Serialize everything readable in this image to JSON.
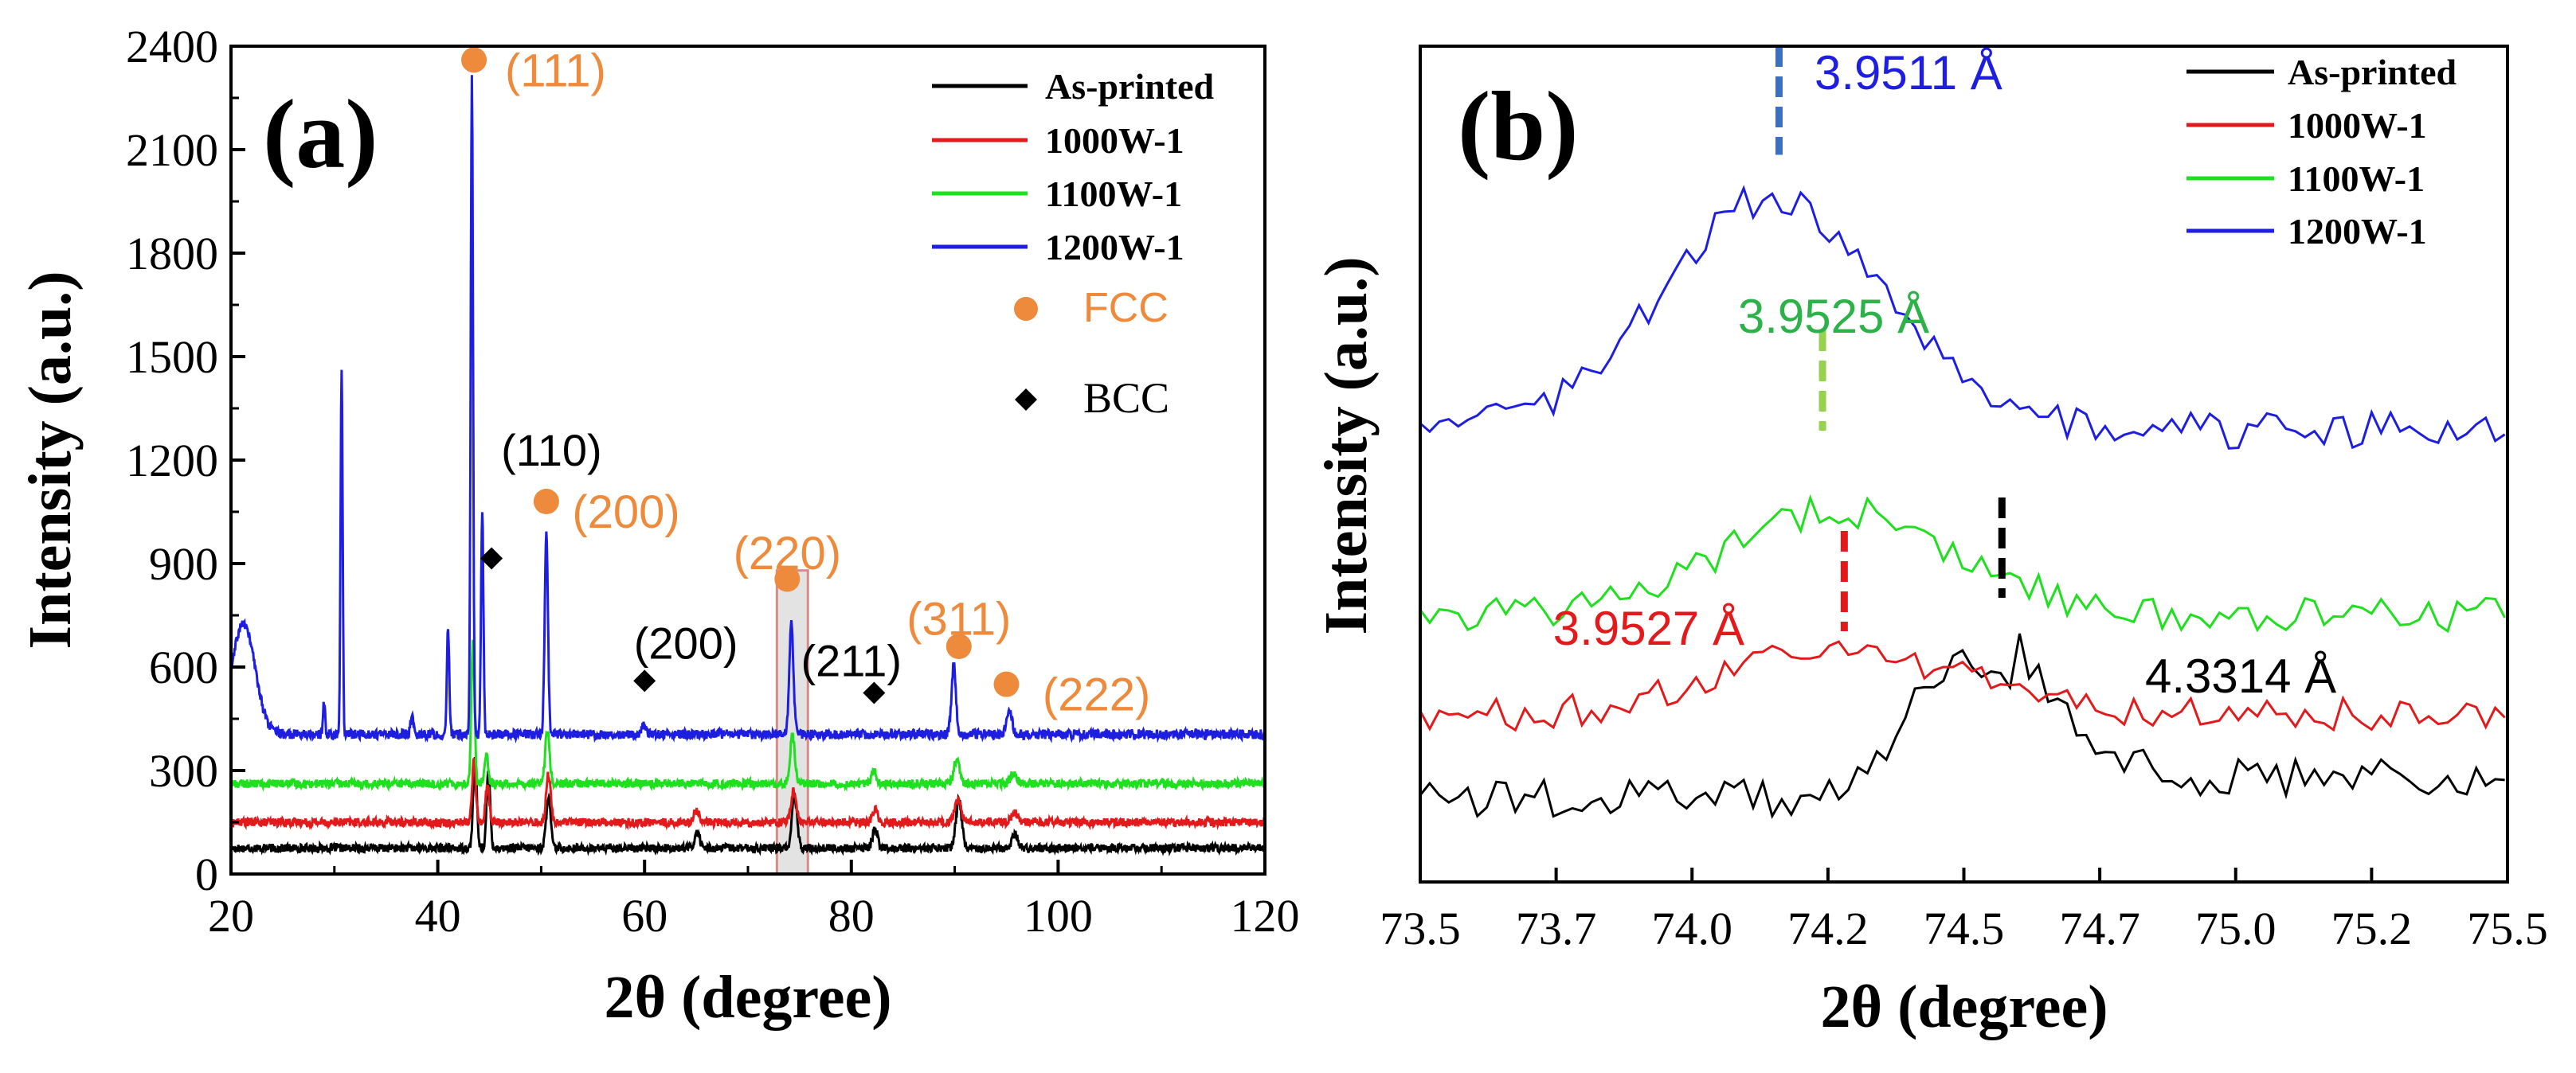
{
  "chart_data": [
    {
      "type": "line",
      "panel_label": "(a)",
      "xlabel": "2θ (degree)",
      "ylabel": "Intensity (a.u.)",
      "xlim": [
        20,
        120
      ],
      "ylim": [
        0,
        2400
      ],
      "xticks": [
        20,
        40,
        60,
        80,
        100,
        120
      ],
      "yticks": [
        0,
        300,
        600,
        900,
        1200,
        1500,
        1800,
        2100,
        2400
      ],
      "series": [
        {
          "name": "As-printed",
          "color": "#000000",
          "baseline": 75,
          "noise": 12,
          "peaks": [
            [
              43.6,
              260,
              0.25
            ],
            [
              44.9,
              220,
              0.25
            ],
            [
              50.7,
              150,
              0.3
            ],
            [
              65.1,
              45,
              0.35
            ],
            [
              74.5,
              150,
              0.35
            ],
            [
              82.3,
              55,
              0.35
            ],
            [
              90.4,
              140,
              0.4
            ],
            [
              95.8,
              40,
              0.4
            ]
          ]
        },
        {
          "name": "1000W-1",
          "color": "#e31a1c",
          "baseline": 150,
          "noise": 12,
          "peaks": [
            [
              43.5,
              180,
              0.25
            ],
            [
              44.8,
              110,
              0.25
            ],
            [
              50.7,
              140,
              0.3
            ],
            [
              65.0,
              35,
              0.35
            ],
            [
              74.4,
              90,
              0.35
            ],
            [
              82.3,
              40,
              0.35
            ],
            [
              90.3,
              70,
              0.4
            ],
            [
              95.8,
              30,
              0.4
            ]
          ]
        },
        {
          "name": "1100W-1",
          "color": "#1ee01e",
          "baseline": 262,
          "noise": 12,
          "peaks": [
            [
              43.4,
              420,
              0.22
            ],
            [
              44.7,
              90,
              0.25
            ],
            [
              50.6,
              150,
              0.3
            ],
            [
              74.3,
              140,
              0.32
            ],
            [
              82.2,
              40,
              0.35
            ],
            [
              90.2,
              70,
              0.4
            ],
            [
              95.7,
              30,
              0.4
            ]
          ]
        },
        {
          "name": "1200W-1",
          "color": "#1e1ee0",
          "baseline": 405,
          "noise": 14,
          "peaks": [
            [
              21.2,
              320,
              1.6
            ],
            [
              29.0,
              90,
              0.15
            ],
            [
              30.7,
              1070,
              0.14
            ],
            [
              37.5,
              50,
              0.2
            ],
            [
              41.0,
              310,
              0.16
            ],
            [
              43.3,
              1900,
              0.16
            ],
            [
              44.3,
              650,
              0.16
            ],
            [
              50.5,
              590,
              0.22
            ],
            [
              59.9,
              25,
              0.3
            ],
            [
              74.2,
              320,
              0.28
            ],
            [
              89.9,
              200,
              0.3
            ],
            [
              95.3,
              70,
              0.35
            ]
          ]
        }
      ],
      "legend": [
        "As-printed",
        "1000W-1",
        "1100W-1",
        "1200W-1"
      ],
      "phase_legend": {
        "fcc": "FCC",
        "bcc": "BCC"
      },
      "annotations": {
        "fcc": [
          {
            "label": "(111)",
            "x": 43.5,
            "y": 2360,
            "text_x": 46.5,
            "text_y": 2330
          },
          {
            "label": "(200)",
            "x": 50.5,
            "y": 1080,
            "text_x": 53.0,
            "text_y": 1050
          },
          {
            "label": "(220)",
            "x": 73.8,
            "y": 855,
            "text_x": 73.8,
            "text_y": 930
          },
          {
            "label": "(311)",
            "x": 90.4,
            "y": 660,
            "text_x": 90.4,
            "text_y": 740
          },
          {
            "label": "(222)",
            "x": 95.0,
            "y": 550,
            "text_x": 98.5,
            "text_y": 520
          }
        ],
        "bcc": [
          {
            "label": "(110)",
            "x": 45.2,
            "y": 915,
            "text_x": 51.0,
            "text_y": 1230
          },
          {
            "label": "(200)",
            "x": 60.0,
            "y": 560,
            "text_x": 64.0,
            "text_y": 670
          },
          {
            "label": "(211)",
            "x": 82.2,
            "y": 525,
            "text_x": 80.0,
            "text_y": 620
          }
        ]
      },
      "highlight_region": [
        72.8,
        75.8
      ]
    },
    {
      "type": "line",
      "panel_label": "(b)",
      "xlabel": "2θ (degree)",
      "ylabel": "Intensity (a.u.)",
      "xlim": [
        73.5,
        75.5
      ],
      "ylim": [
        0,
        100
      ],
      "xticks": [
        "73.5",
        "73.7",
        "74.0",
        "74.2",
        "74.5",
        "74.7",
        "75.0",
        "75.2",
        "75.5"
      ],
      "series": [
        {
          "name": "As-printed",
          "color": "#000000",
          "baseline": 10,
          "noise": 2.2,
          "peaks": [
            [
              74.5,
              14,
              0.14
            ]
          ],
          "step": [
            74.27,
            74.42,
            2.5
          ],
          "tail": [
            74.6,
            74.92,
            7
          ]
        },
        {
          "name": "1000W-1",
          "color": "#e31a1c",
          "baseline": 20,
          "noise": 2.0,
          "peaks": [
            [
              74.27,
              8,
              0.3
            ]
          ]
        },
        {
          "name": "1100W-1",
          "color": "#1ee01e",
          "baseline": 32,
          "noise": 2.0,
          "peaks": [
            [
              74.27,
              12.5,
              0.3
            ]
          ]
        },
        {
          "name": "1200W-1",
          "color": "#1e1ee0",
          "baseline": 54,
          "noise": 2.2,
          "peaks": [
            [
              74.15,
              28,
              0.29
            ]
          ]
        }
      ],
      "legend": [
        "As-printed",
        "1000W-1",
        "1100W-1",
        "1200W-1"
      ],
      "lattice_annotations": [
        {
          "label": "3.9511 Å",
          "color": "#1e1ee0",
          "x": 74.16,
          "y_top": 100,
          "y_bottom": 87,
          "marker_color": "#3a6fc4"
        },
        {
          "label": "3.9525 Å",
          "color": "#2db24a",
          "x": 74.24,
          "y_top": 66,
          "y_bottom": 54,
          "marker_color": "#96d24e"
        },
        {
          "label": "3.9527 Å",
          "color": "#e31a1c",
          "x": 74.28,
          "y_top": 42,
          "y_bottom": 30,
          "marker_color": "#e31a1c"
        },
        {
          "label": "4.3314 Å",
          "color": "#000000",
          "x": 74.57,
          "y_top": 46,
          "y_bottom": 34,
          "marker_color": "#000000"
        }
      ]
    }
  ]
}
